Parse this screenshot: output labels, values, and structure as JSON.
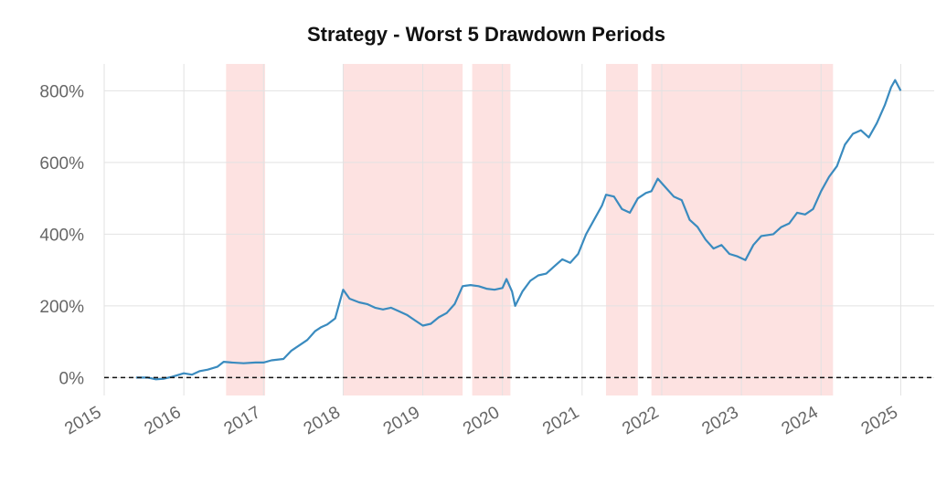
{
  "chart_data": {
    "type": "line",
    "title": "Strategy - Worst 5 Drawdown Periods",
    "xlabel": "",
    "ylabel": "",
    "ylim": [
      -50,
      875
    ],
    "xlim": [
      2015,
      2025.42
    ],
    "x_ticks": [
      "2015",
      "2016",
      "2017",
      "2018",
      "2019",
      "2020",
      "2021",
      "2022",
      "2023",
      "2024",
      "2025"
    ],
    "y_ticks": [
      {
        "value": 0,
        "label": "0%"
      },
      {
        "value": 200,
        "label": "200%"
      },
      {
        "value": 400,
        "label": "400%"
      },
      {
        "value": 600,
        "label": "600%"
      },
      {
        "value": 800,
        "label": "800%"
      }
    ],
    "grid": true,
    "series_color": "#3a8bbf",
    "drawdown_color": "#fde2e1",
    "zero_line_color": "#111111",
    "drawdown_periods": [
      {
        "start": 2016.53,
        "end": 2017.02
      },
      {
        "start": 2018.0,
        "end": 2019.5
      },
      {
        "start": 2019.62,
        "end": 2020.1
      },
      {
        "start": 2021.3,
        "end": 2021.7
      },
      {
        "start": 2021.87,
        "end": 2024.15
      }
    ],
    "series": [
      {
        "points": [
          [
            2015.4,
            0
          ],
          [
            2015.55,
            0
          ],
          [
            2015.65,
            -5
          ],
          [
            2015.75,
            -3
          ],
          [
            2015.85,
            2
          ],
          [
            2016.0,
            12
          ],
          [
            2016.1,
            8
          ],
          [
            2016.2,
            18
          ],
          [
            2016.3,
            22
          ],
          [
            2016.42,
            30
          ],
          [
            2016.5,
            44
          ],
          [
            2016.6,
            42
          ],
          [
            2016.75,
            40
          ],
          [
            2016.9,
            42
          ],
          [
            2017.0,
            42
          ],
          [
            2017.1,
            48
          ],
          [
            2017.25,
            52
          ],
          [
            2017.35,
            75
          ],
          [
            2017.45,
            90
          ],
          [
            2017.55,
            105
          ],
          [
            2017.65,
            130
          ],
          [
            2017.72,
            140
          ],
          [
            2017.8,
            148
          ],
          [
            2017.9,
            165
          ],
          [
            2018.0,
            245
          ],
          [
            2018.08,
            220
          ],
          [
            2018.2,
            210
          ],
          [
            2018.3,
            205
          ],
          [
            2018.4,
            195
          ],
          [
            2018.5,
            190
          ],
          [
            2018.6,
            195
          ],
          [
            2018.7,
            185
          ],
          [
            2018.8,
            175
          ],
          [
            2018.9,
            160
          ],
          [
            2019.0,
            145
          ],
          [
            2019.1,
            150
          ],
          [
            2019.2,
            168
          ],
          [
            2019.3,
            180
          ],
          [
            2019.4,
            205
          ],
          [
            2019.5,
            255
          ],
          [
            2019.6,
            258
          ],
          [
            2019.7,
            255
          ],
          [
            2019.8,
            248
          ],
          [
            2019.9,
            245
          ],
          [
            2020.0,
            250
          ],
          [
            2020.05,
            275
          ],
          [
            2020.12,
            240
          ],
          [
            2020.16,
            200
          ],
          [
            2020.25,
            240
          ],
          [
            2020.35,
            270
          ],
          [
            2020.45,
            285
          ],
          [
            2020.55,
            290
          ],
          [
            2020.65,
            310
          ],
          [
            2020.75,
            330
          ],
          [
            2020.85,
            320
          ],
          [
            2020.95,
            345
          ],
          [
            2021.05,
            400
          ],
          [
            2021.15,
            440
          ],
          [
            2021.25,
            480
          ],
          [
            2021.3,
            510
          ],
          [
            2021.4,
            505
          ],
          [
            2021.5,
            470
          ],
          [
            2021.6,
            460
          ],
          [
            2021.7,
            500
          ],
          [
            2021.8,
            515
          ],
          [
            2021.87,
            520
          ],
          [
            2021.95,
            555
          ],
          [
            2022.05,
            530
          ],
          [
            2022.15,
            505
          ],
          [
            2022.25,
            495
          ],
          [
            2022.35,
            440
          ],
          [
            2022.45,
            420
          ],
          [
            2022.55,
            385
          ],
          [
            2022.65,
            360
          ],
          [
            2022.75,
            370
          ],
          [
            2022.85,
            345
          ],
          [
            2022.95,
            338
          ],
          [
            2023.05,
            328
          ],
          [
            2023.15,
            370
          ],
          [
            2023.25,
            395
          ],
          [
            2023.4,
            400
          ],
          [
            2023.5,
            420
          ],
          [
            2023.6,
            430
          ],
          [
            2023.7,
            460
          ],
          [
            2023.8,
            455
          ],
          [
            2023.9,
            470
          ],
          [
            2024.0,
            520
          ],
          [
            2024.1,
            560
          ],
          [
            2024.2,
            590
          ],
          [
            2024.3,
            650
          ],
          [
            2024.4,
            680
          ],
          [
            2024.5,
            690
          ],
          [
            2024.6,
            670
          ],
          [
            2024.7,
            710
          ],
          [
            2024.8,
            760
          ],
          [
            2024.88,
            810
          ],
          [
            2024.93,
            830
          ],
          [
            2025.0,
            800
          ]
        ]
      }
    ]
  }
}
